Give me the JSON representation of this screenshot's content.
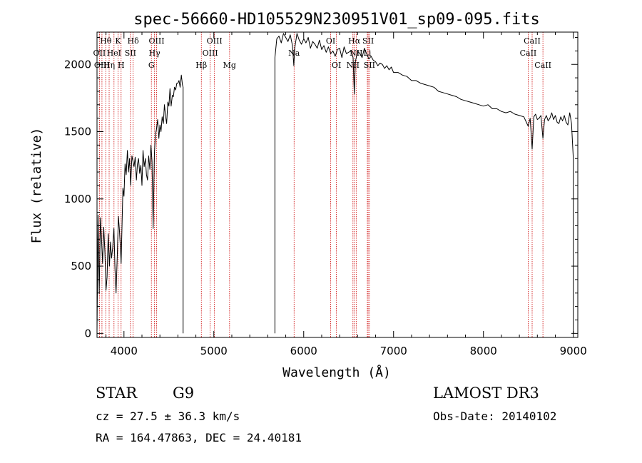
{
  "chart_data": {
    "type": "line",
    "title": "spec-56660-HD105529N230951V01_sp09-095.fits",
    "xlabel": "Wavelength (Å)",
    "ylabel": "Flux (relative)",
    "xlim": [
      3700,
      9050
    ],
    "ylim": [
      -30,
      2240
    ],
    "x_ticks": [
      4000,
      5000,
      6000,
      7000,
      8000,
      9000
    ],
    "y_ticks": [
      0,
      500,
      1000,
      1500,
      2000
    ],
    "x_tick_labels": [
      "4000",
      "5000",
      "6000",
      "7000",
      "8000",
      "9000"
    ],
    "y_tick_labels": [
      "0",
      "500",
      "1000",
      "1500",
      "2000"
    ],
    "series": [
      {
        "name": "flux",
        "segments": [
          {
            "x": [
              3700,
              3712,
              3725,
              3738,
              3750,
              3762,
              3775,
              3788,
              3800,
              3812,
              3825,
              3838,
              3850,
              3862,
              3875,
              3888,
              3900,
              3912,
              3925,
              3938,
              3950,
              3962,
              3968,
              3975,
              3988,
              4000,
              4012,
              4025,
              4038,
              4050,
              4062,
              4075,
              4088,
              4100,
              4112,
              4125,
              4138,
              4150,
              4162,
              4175,
              4188,
              4200,
              4212,
              4225,
              4238,
              4250,
              4262,
              4275,
              4288,
              4300,
              4312,
              4325,
              4338,
              4350,
              4362,
              4375,
              4388,
              4400,
              4412,
              4425,
              4438,
              4450,
              4462,
              4475,
              4488,
              4500,
              4512,
              4525,
              4538,
              4550,
              4562,
              4575,
              4588,
              4600,
              4612,
              4625,
              4638,
              4650,
              4658
            ],
            "y": [
              20,
              880,
              300,
              860,
              700,
              520,
              790,
              600,
              320,
              420,
              740,
              500,
              680,
              560,
              640,
              780,
              480,
              300,
              560,
              870,
              760,
              620,
              520,
              700,
              1080,
              1020,
              1260,
              1180,
              1360,
              1200,
              1300,
              1100,
              1320,
              1280,
              1240,
              1310,
              1140,
              1260,
              1300,
              1190,
              1250,
              1100,
              1360,
              1240,
              1300,
              1180,
              1140,
              1320,
              1220,
              1400,
              1280,
              780,
              1330,
              1480,
              1520,
              1590,
              1450,
              1550,
              1500,
              1610,
              1560,
              1700,
              1620,
              1560,
              1720,
              1690,
              1820,
              1690,
              1770,
              1760,
              1830,
              1810,
              1860,
              1860,
              1880,
              1830,
              1920,
              1850,
              1830
            ]
          },
          {
            "x": [
              5680,
              5700,
              5725,
              5750,
              5775,
              5800,
              5825,
              5850,
              5875,
              5890,
              5900,
              5925,
              5950,
              5975,
              6000,
              6025,
              6050,
              6075,
              6100,
              6125,
              6150,
              6175,
              6200,
              6225,
              6250,
              6275,
              6300,
              6325,
              6350,
              6375,
              6400,
              6425,
              6450,
              6475,
              6500,
              6525,
              6550,
              6563,
              6575,
              6600,
              6625,
              6650,
              6675,
              6700,
              6725,
              6750,
              6775,
              6800,
              6825,
              6850,
              6875,
              6900,
              6925,
              6950,
              6975,
              7000,
              7050,
              7100,
              7150,
              7200,
              7250,
              7300,
              7350,
              7400,
              7450,
              7500,
              7550,
              7600,
              7650,
              7700,
              7750,
              7800,
              7850,
              7900,
              7950,
              8000,
              8050,
              8100,
              8150,
              8200,
              8250,
              8300,
              8350,
              8400,
              8450,
              8498,
              8520,
              8542,
              8560,
              8580,
              8600,
              8620,
              8640,
              8662,
              8680,
              8700,
              8720,
              8740,
              8760,
              8780,
              8800,
              8820,
              8840,
              8860,
              8880,
              8900,
              8920,
              8940,
              8960,
              8980,
              9000
            ],
            "y": [
              2050,
              2190,
              2210,
              2160,
              2230,
              2200,
              2170,
              2220,
              2140,
              1990,
              2120,
              2230,
              2180,
              2150,
              2190,
              2160,
              2200,
              2120,
              2170,
              2150,
              2120,
              2180,
              2110,
              2140,
              2090,
              2130,
              2080,
              2100,
              2060,
              2110,
              2120,
              2050,
              2130,
              2080,
              2090,
              2100,
              2050,
              1780,
              2020,
              2100,
              2080,
              2050,
              2120,
              2080,
              2040,
              2060,
              2030,
              2020,
              1990,
              2010,
              2000,
              1970,
              1990,
              1960,
              1980,
              1940,
              1940,
              1920,
              1910,
              1880,
              1880,
              1860,
              1850,
              1840,
              1830,
              1800,
              1790,
              1780,
              1770,
              1760,
              1740,
              1730,
              1720,
              1710,
              1700,
              1690,
              1700,
              1670,
              1670,
              1650,
              1640,
              1650,
              1630,
              1620,
              1610,
              1540,
              1600,
              1370,
              1610,
              1630,
              1590,
              1600,
              1620,
              1450,
              1590,
              1620,
              1580,
              1600,
              1640,
              1590,
              1620,
              1570,
              1560,
              1610,
              1580,
              1620,
              1570,
              1550,
              1640,
              1560,
              1300
            ]
          }
        ]
      }
    ],
    "lines": [
      {
        "name": "Hθ",
        "wavelength": 3797,
        "row": 0
      },
      {
        "name": "OII",
        "wavelength": 3727,
        "row": 1
      },
      {
        "name": "OIII",
        "wavelength": 3755,
        "row": 2
      },
      {
        "name": "HeI",
        "wavelength": 3889,
        "row": 1
      },
      {
        "name": "Hη",
        "wavelength": 3835,
        "row": 2
      },
      {
        "name": "K",
        "wavelength": 3934,
        "row": 0
      },
      {
        "name": "SII",
        "wavelength": 4072,
        "row": 1
      },
      {
        "name": "H",
        "wavelength": 3968,
        "row": 2
      },
      {
        "name": "Hδ",
        "wavelength": 4102,
        "row": 0
      },
      {
        "name": "OIII",
        "wavelength": 4363,
        "row": 0
      },
      {
        "name": "Hγ",
        "wavelength": 4340,
        "row": 1
      },
      {
        "name": "G",
        "wavelength": 4305,
        "row": 2
      },
      {
        "name": "Hβ",
        "wavelength": 4861,
        "row": 2
      },
      {
        "name": "OIII",
        "wavelength": 5007,
        "row": 0
      },
      {
        "name": "OIII",
        "wavelength": 4959,
        "row": 1
      },
      {
        "name": "Mg",
        "wavelength": 5175,
        "row": 2
      },
      {
        "name": "Na",
        "wavelength": 5893,
        "row": 1
      },
      {
        "name": "OI",
        "wavelength": 6300,
        "row": 0
      },
      {
        "name": "OI",
        "wavelength": 6364,
        "row": 2
      },
      {
        "name": "Hα",
        "wavelength": 6563,
        "row": 0
      },
      {
        "name": "SII",
        "wavelength": 6717,
        "row": 0
      },
      {
        "name": "NII",
        "wavelength": 6584,
        "row": 1
      },
      {
        "name": "Li",
        "wavelength": 6708,
        "row": 1
      },
      {
        "name": "NII",
        "wavelength": 6548,
        "row": 2
      },
      {
        "name": "SII",
        "wavelength": 6731,
        "row": 2
      },
      {
        "name": "CaII",
        "wavelength": 8542,
        "row": 0
      },
      {
        "name": "CaII",
        "wavelength": 8498,
        "row": 1
      },
      {
        "name": "CaII",
        "wavelength": 8662,
        "row": 2
      }
    ]
  },
  "info": {
    "object_class": "STAR",
    "subclass": "G9",
    "survey": "LAMOST DR3",
    "cz": "cz = 27.5 ± 36.3 km/s",
    "obs_date": "Obs-Date: 20140102",
    "coords": "RA = 164.47863, DEC =  24.40181"
  },
  "colors": {
    "spectrum": "#000000",
    "line_markers": "#cc0000",
    "axes": "#000000"
  }
}
